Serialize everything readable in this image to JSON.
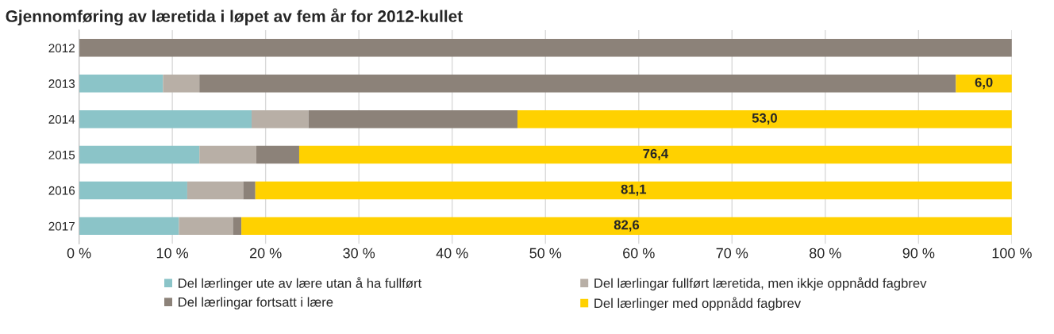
{
  "chart_data": {
    "type": "bar",
    "orientation": "horizontal",
    "stacked": true,
    "title": "Gjennomføring av læretida i løpet av fem år for 2012-kullet",
    "categories": [
      "2012",
      "2013",
      "2014",
      "2015",
      "2016",
      "2017"
    ],
    "series": [
      {
        "name": "Del lærlinger ute av lære utan å ha fullført",
        "color": "#8bc4c8",
        "values": [
          0,
          9.0,
          18.5,
          12.9,
          11.6,
          10.7
        ]
      },
      {
        "name": "Del lærlingar fullført læretida, men ikkje oppnådd fagbrev",
        "color": "#b8afa6",
        "values": [
          0,
          3.9,
          6.1,
          6.1,
          6.0,
          5.8
        ]
      },
      {
        "name": "Del lærlingar fortsatt i lære",
        "color": "#8c8279",
        "values": [
          100,
          81.1,
          22.4,
          4.6,
          1.3,
          0.9
        ]
      },
      {
        "name": "Del lærlinger med oppnådd fagbrev",
        "color": "#ffd100",
        "values": [
          0,
          6.0,
          53.0,
          76.4,
          81.1,
          82.6
        ],
        "value_labels": [
          null,
          "6,0",
          "53,0",
          "76,4",
          "81,1",
          "82,6"
        ]
      }
    ],
    "xlim": [
      0,
      100
    ],
    "xticks": [
      {
        "value": 0,
        "label": "0 %"
      },
      {
        "value": 10,
        "label": "10 %"
      },
      {
        "value": 20,
        "label": "20 %"
      },
      {
        "value": 30,
        "label": "30 %"
      },
      {
        "value": 40,
        "label": "40 %"
      },
      {
        "value": 50,
        "label": "50 %"
      },
      {
        "value": 60,
        "label": "60 %"
      },
      {
        "value": 70,
        "label": "70 %"
      },
      {
        "value": 80,
        "label": "80 %"
      },
      {
        "value": 90,
        "label": "90 %"
      },
      {
        "value": 100,
        "label": "100 %"
      }
    ],
    "grid": "x",
    "legend": "bottom"
  }
}
